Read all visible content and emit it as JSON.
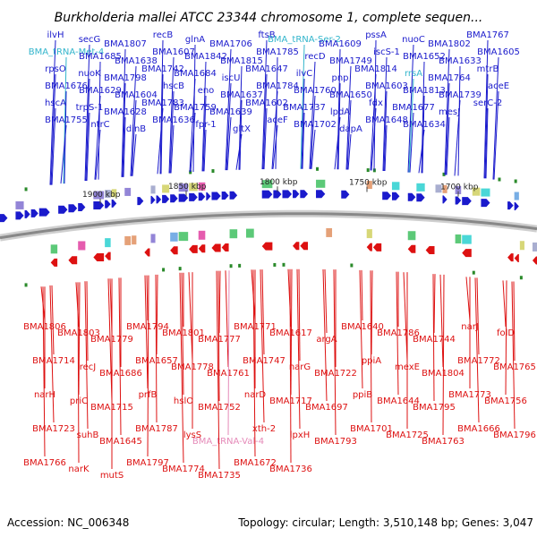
{
  "title": "Burkholderia mallei ATCC 23344 chromosome 1, complete sequen...",
  "footer": {
    "accession": "Accession: NC_006348",
    "summary": "Topology: circular; Length: 3,510,148 bp; Genes: 3,047"
  },
  "scale_labels": [
    "1900 kbp",
    "1850 kbp",
    "1800 kbp",
    "1750 kbp",
    "1700 kbp"
  ],
  "colors": {
    "forward": "#1a1acc",
    "reverse": "#dd1111",
    "trna_forward": "#33b5cc",
    "trna_reverse": "#e58ab8",
    "backbone": "#888888"
  },
  "top_labels": [
    {
      "text": "ilvH",
      "kind": "gene"
    },
    {
      "text": "secG",
      "kind": "gene"
    },
    {
      "text": "BMA1807",
      "kind": "gene"
    },
    {
      "text": "recB",
      "kind": "gene"
    },
    {
      "text": "glnA",
      "kind": "gene"
    },
    {
      "text": "BMA1706",
      "kind": "gene"
    },
    {
      "text": "ftsB",
      "kind": "gene"
    },
    {
      "text": "BMA_tRNA-Ser-2",
      "kind": "trna"
    },
    {
      "text": "BMA1609",
      "kind": "gene"
    },
    {
      "text": "pssA",
      "kind": "gene"
    },
    {
      "text": "nuoC",
      "kind": "gene"
    },
    {
      "text": "BMA1802",
      "kind": "gene"
    },
    {
      "text": "BMA1767",
      "kind": "gene"
    },
    {
      "text": "BMA_tRNA-Met-4",
      "kind": "trna"
    },
    {
      "text": "BMA1685",
      "kind": "gene"
    },
    {
      "text": "BMA1638",
      "kind": "gene"
    },
    {
      "text": "BMA1607",
      "kind": "gene"
    },
    {
      "text": "BMA1842",
      "kind": "gene"
    },
    {
      "text": "BMA1815",
      "kind": "gene"
    },
    {
      "text": "BMA1785",
      "kind": "gene"
    },
    {
      "text": "recD",
      "kind": "gene"
    },
    {
      "text": "BMA1749",
      "kind": "gene"
    },
    {
      "text": "iscS-1",
      "kind": "gene"
    },
    {
      "text": "BMA1652",
      "kind": "gene"
    },
    {
      "text": "BMA1633",
      "kind": "gene"
    },
    {
      "text": "BMA1605",
      "kind": "gene"
    },
    {
      "text": "rpsO",
      "kind": "gene"
    },
    {
      "text": "nuoK",
      "kind": "gene"
    },
    {
      "text": "BMA1798",
      "kind": "gene"
    },
    {
      "text": "BMA1742",
      "kind": "gene"
    },
    {
      "text": "BMA1684",
      "kind": "gene"
    },
    {
      "text": "iscU",
      "kind": "gene"
    },
    {
      "text": "BMA1647",
      "kind": "gene"
    },
    {
      "text": "ilvC",
      "kind": "gene"
    },
    {
      "text": "pnp",
      "kind": "gene"
    },
    {
      "text": "BMA1814",
      "kind": "gene"
    },
    {
      "text": "rrsA",
      "kind": "trna"
    },
    {
      "text": "BMA1764",
      "kind": "gene"
    },
    {
      "text": "mtrB",
      "kind": "gene"
    },
    {
      "text": "BMA1676",
      "kind": "gene"
    },
    {
      "text": "BMA1629",
      "kind": "gene"
    },
    {
      "text": "BMA1604",
      "kind": "gene"
    },
    {
      "text": "hscB",
      "kind": "gene"
    },
    {
      "text": "eno",
      "kind": "gene"
    },
    {
      "text": "BMA1637",
      "kind": "gene"
    },
    {
      "text": "BMA1784",
      "kind": "gene"
    },
    {
      "text": "BMA1760",
      "kind": "gene"
    },
    {
      "text": "BMA1650",
      "kind": "gene"
    },
    {
      "text": "BMA1603",
      "kind": "gene"
    },
    {
      "text": "BMA1813",
      "kind": "gene"
    },
    {
      "text": "BMA1739",
      "kind": "gene"
    },
    {
      "text": "aceE",
      "kind": "gene"
    },
    {
      "text": "hscA",
      "kind": "gene"
    },
    {
      "text": "trpS-1",
      "kind": "gene"
    },
    {
      "text": "BMA1628",
      "kind": "gene"
    },
    {
      "text": "BMA1783",
      "kind": "gene"
    },
    {
      "text": "BMA1759",
      "kind": "gene"
    },
    {
      "text": "BMA1639",
      "kind": "gene"
    },
    {
      "text": "BMA1602",
      "kind": "gene"
    },
    {
      "text": "BMA1737",
      "kind": "gene"
    },
    {
      "text": "lpdA",
      "kind": "gene"
    },
    {
      "text": "fdx",
      "kind": "gene"
    },
    {
      "text": "BMA1677",
      "kind": "gene"
    },
    {
      "text": "mesJ",
      "kind": "gene"
    },
    {
      "text": "serC-2",
      "kind": "gene"
    },
    {
      "text": "BMA1755",
      "kind": "gene"
    },
    {
      "text": "ntrC",
      "kind": "gene"
    },
    {
      "text": "dinB",
      "kind": "gene"
    },
    {
      "text": "BMA1636",
      "kind": "gene"
    },
    {
      "text": "fpr-1",
      "kind": "gene"
    },
    {
      "text": "gltX",
      "kind": "gene"
    },
    {
      "text": "aceF",
      "kind": "gene"
    },
    {
      "text": "BMA1702",
      "kind": "gene"
    },
    {
      "text": "dapA",
      "kind": "gene"
    },
    {
      "text": "BMA1648",
      "kind": "gene"
    },
    {
      "text": "BMA1634",
      "kind": "gene"
    }
  ],
  "bottom_labels": [
    {
      "text": "BMA1806",
      "kind": "gene"
    },
    {
      "text": "BMA1803",
      "kind": "gene"
    },
    {
      "text": "BMA1779",
      "kind": "gene"
    },
    {
      "text": "BMA1794",
      "kind": "gene"
    },
    {
      "text": "BMA1801",
      "kind": "gene"
    },
    {
      "text": "BMA1777",
      "kind": "gene"
    },
    {
      "text": "BMA1771",
      "kind": "gene"
    },
    {
      "text": "BMA1617",
      "kind": "gene"
    },
    {
      "text": "argA",
      "kind": "gene"
    },
    {
      "text": "BMA1640",
      "kind": "gene"
    },
    {
      "text": "BMA1786",
      "kind": "gene"
    },
    {
      "text": "BMA1744",
      "kind": "gene"
    },
    {
      "text": "narJ",
      "kind": "gene"
    },
    {
      "text": "folD",
      "kind": "gene"
    },
    {
      "text": "BMA1714",
      "kind": "gene"
    },
    {
      "text": "recJ",
      "kind": "gene"
    },
    {
      "text": "BMA1686",
      "kind": "gene"
    },
    {
      "text": "BMA1657",
      "kind": "gene"
    },
    {
      "text": "BMA1778",
      "kind": "gene"
    },
    {
      "text": "BMA1761",
      "kind": "gene"
    },
    {
      "text": "BMA1747",
      "kind": "gene"
    },
    {
      "text": "narG",
      "kind": "gene"
    },
    {
      "text": "BMA1722",
      "kind": "gene"
    },
    {
      "text": "ppiA",
      "kind": "gene"
    },
    {
      "text": "mexE",
      "kind": "gene"
    },
    {
      "text": "BMA1804",
      "kind": "gene"
    },
    {
      "text": "BMA1772",
      "kind": "gene"
    },
    {
      "text": "BMA1765",
      "kind": "gene"
    },
    {
      "text": "narH",
      "kind": "gene"
    },
    {
      "text": "priC",
      "kind": "gene"
    },
    {
      "text": "BMA1715",
      "kind": "gene"
    },
    {
      "text": "prfB",
      "kind": "gene"
    },
    {
      "text": "hslO",
      "kind": "gene"
    },
    {
      "text": "BMA1752",
      "kind": "gene"
    },
    {
      "text": "narD",
      "kind": "gene"
    },
    {
      "text": "BMA1717",
      "kind": "gene"
    },
    {
      "text": "BMA1697",
      "kind": "gene"
    },
    {
      "text": "ppiB",
      "kind": "gene"
    },
    {
      "text": "BMA1644",
      "kind": "gene"
    },
    {
      "text": "BMA1795",
      "kind": "gene"
    },
    {
      "text": "BMA1773",
      "kind": "gene"
    },
    {
      "text": "BMA1756",
      "kind": "gene"
    },
    {
      "text": "BMA1723",
      "kind": "gene"
    },
    {
      "text": "suhB",
      "kind": "gene"
    },
    {
      "text": "BMA1645",
      "kind": "gene"
    },
    {
      "text": "BMA1787",
      "kind": "gene"
    },
    {
      "text": "lysS",
      "kind": "gene"
    },
    {
      "text": "BMA_tRNA-Val-4",
      "kind": "trna"
    },
    {
      "text": "xth-2",
      "kind": "gene"
    },
    {
      "text": "lpxH",
      "kind": "gene"
    },
    {
      "text": "BMA1793",
      "kind": "gene"
    },
    {
      "text": "BMA1701",
      "kind": "gene"
    },
    {
      "text": "BMA1725",
      "kind": "gene"
    },
    {
      "text": "BMA1763",
      "kind": "gene"
    },
    {
      "text": "BMA1666",
      "kind": "gene"
    },
    {
      "text": "BMA1796",
      "kind": "gene"
    },
    {
      "text": "BMA1766",
      "kind": "gene"
    },
    {
      "text": "narK",
      "kind": "gene"
    },
    {
      "text": "mutS",
      "kind": "gene"
    },
    {
      "text": "BMA1797",
      "kind": "gene"
    },
    {
      "text": "BMA1774",
      "kind": "gene"
    },
    {
      "text": "BMA1735",
      "kind": "gene"
    },
    {
      "text": "BMA1672",
      "kind": "gene"
    },
    {
      "text": "BMA1736",
      "kind": "gene"
    }
  ]
}
